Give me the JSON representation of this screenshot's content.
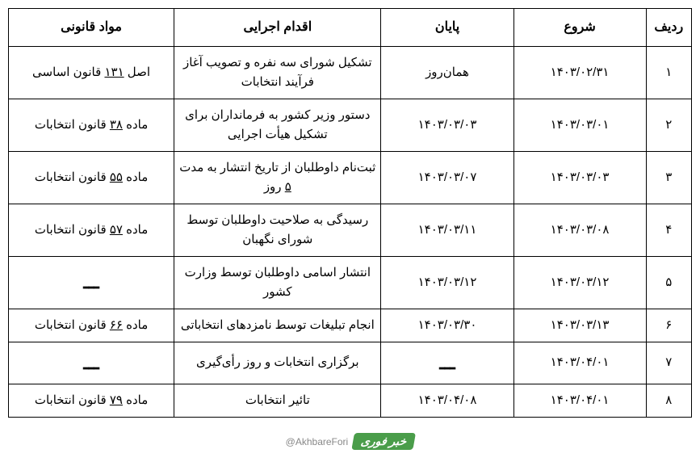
{
  "table": {
    "headers": {
      "row": "ردیف",
      "start": "شروع",
      "end": "پایان",
      "action": "اقدام اجرایی",
      "legal": "مواد قانونی"
    },
    "rows": [
      {
        "num": "۱",
        "start": "۱۴۰۳/۰۲/۳۱",
        "end": "همان‌روز",
        "action": "تشکیل شورای سه نفره و تصویب آغاز فرآیند انتخابات",
        "legal_pre": "اصل ",
        "legal_u": "۱۳۱",
        "legal_post": " قانون اساسی"
      },
      {
        "num": "۲",
        "start": "۱۴۰۳/۰۳/۰۱",
        "end": "۱۴۰۳/۰۳/۰۳",
        "action": "دستور وزیر کشور به فرمانداران برای تشکیل هیأت اجرایی",
        "legal_pre": "ماده ",
        "legal_u": "۳۸",
        "legal_post": " قانون انتخابات"
      },
      {
        "num": "۳",
        "start": "۱۴۰۳/۰۳/۰۳",
        "end": "۱۴۰۳/۰۳/۰۷",
        "action_pre": "ثبت‌نام داوطلبان از تاریخ انتشار به مدت ",
        "action_u": "۵",
        "action_post": " روز",
        "legal_pre": "ماده ",
        "legal_u": "۵۵",
        "legal_post": " قانون انتخابات"
      },
      {
        "num": "۴",
        "start": "۱۴۰۳/۰۳/۰۸",
        "end": "۱۴۰۳/۰۳/۱۱",
        "action": "رسیدگی به صلاحیت داوطلبان توسط شورای نگهبان",
        "legal_pre": "ماده ",
        "legal_u": "۵۷",
        "legal_post": " قانون انتخابات"
      },
      {
        "num": "۵",
        "start": "۱۴۰۳/۰۳/۱۲",
        "end": "۱۴۰۳/۰۳/۱۲",
        "action": "انتشار اسامی داوطلبان توسط وزارت کشور",
        "legal_dash": "ـــ"
      },
      {
        "num": "۶",
        "start": "۱۴۰۳/۰۳/۱۳",
        "end": "۱۴۰۳/۰۳/۳۰",
        "action": "انجام تبلیغات توسط نامزدهای انتخاباتی",
        "legal_pre": "ماده ",
        "legal_u": "۶۶",
        "legal_post": " قانون انتخابات"
      },
      {
        "num": "۷",
        "start": "۱۴۰۳/۰۴/۰۱",
        "end_dash": "ـــ",
        "action": "برگزاری انتخابات و روز رأی‌گیری",
        "legal_dash": "ـــ"
      },
      {
        "num": "۸",
        "start": "۱۴۰۳/۰۴/۰۱",
        "end": "۱۴۰۳/۰۴/۰۸",
        "action": "تائیر انتخابات",
        "legal_pre": "ماده ",
        "legal_u": "۷۹",
        "legal_post": " قانون انتخابات"
      }
    ]
  },
  "watermark": {
    "handle": "@AkhbareFori",
    "logo": "خبر فوری"
  },
  "styling": {
    "border_color": "#000000",
    "background_color": "#ffffff",
    "header_fontsize": 16,
    "cell_fontsize": 15,
    "watermark_bg": "#4a9d4a",
    "watermark_text_color": "#888888"
  }
}
